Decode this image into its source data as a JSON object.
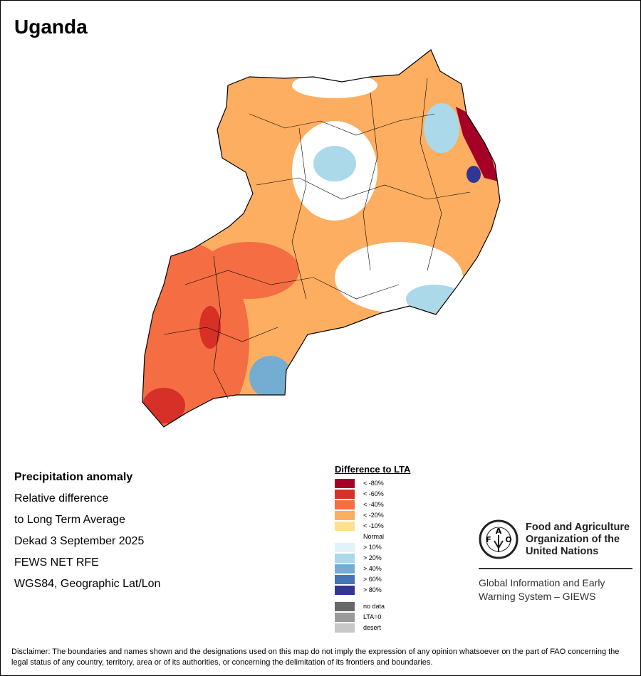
{
  "title": "Uganda",
  "info": {
    "heading": "Precipitation anomaly",
    "line1": "Relative difference",
    "line2": "to Long Term Average",
    "period": "Dekad 3 September 2025",
    "source": "FEWS NET RFE",
    "projection": "WGS84, Geographic Lat/Lon"
  },
  "legend": {
    "title": "Difference to LTA",
    "items": [
      {
        "label": "< -80%",
        "color": "#a50026"
      },
      {
        "label": "< -60%",
        "color": "#d73027"
      },
      {
        "label": "< -40%",
        "color": "#f46d43"
      },
      {
        "label": "< -20%",
        "color": "#fdae61"
      },
      {
        "label": "< -10%",
        "color": "#fee090"
      },
      {
        "label": "Normal",
        "color": "#ffffff"
      },
      {
        "label": "> 10%",
        "color": "#e0f3f8"
      },
      {
        "label": "> 20%",
        "color": "#abd9e9"
      },
      {
        "label": "> 40%",
        "color": "#74add1"
      },
      {
        "label": "> 60%",
        "color": "#4575b4"
      },
      {
        "label": "> 80%",
        "color": "#313695"
      }
    ],
    "extra": [
      {
        "label": "no data",
        "color": "#696969"
      },
      {
        "label": "LTA=0",
        "color": "#9a9a9a"
      },
      {
        "label": "desert",
        "color": "#c8c8c8"
      }
    ]
  },
  "logo": {
    "emblem": "FAO FIAT PANIS",
    "line1": "Food and Agriculture",
    "line2": "Organization of the",
    "line3": "United Nations",
    "giews1": "Global Information and Early",
    "giews2": "Warning System – GIEWS"
  },
  "disclaimer": "Disclaimer: The boundaries and names shown and the designations used on this map do not imply the expression of any opinion whatsoever on the part of FAO concerning the legal status of any country, territory, area or of its authorities, or concerning the delimitation of its frontiers and boundaries."
}
